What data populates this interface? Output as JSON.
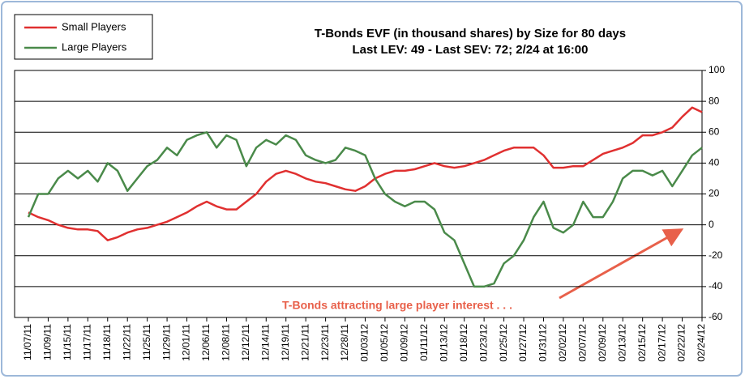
{
  "chart_data": {
    "type": "line",
    "title": "T-Bonds EVF (in thousand shares) by Size for 80 days",
    "subtitle": "Last LEV: 49 - Last SEV: 72; 2/24 at 16:00",
    "annotation": "T-Bonds attracting large player interest . . .",
    "categories": [
      "11/07/11",
      null,
      "11/09/11",
      null,
      "11/15/11",
      null,
      "11/17/11",
      null,
      "11/18/11",
      null,
      "11/22/11",
      null,
      "11/25/11",
      null,
      "11/29/11",
      null,
      "12/01/11",
      null,
      "12/06/11",
      null,
      "12/08/11",
      null,
      "12/12/11",
      null,
      "12/14/11",
      null,
      "12/19/11",
      null,
      "12/21/11",
      null,
      "12/23/11",
      null,
      "12/28/11",
      null,
      "01/03/12",
      null,
      "01/05/12",
      null,
      "01/09/12",
      null,
      "01/11/12",
      null,
      "01/13/12",
      null,
      "01/18/12",
      null,
      "01/23/12",
      null,
      "01/25/12",
      null,
      "01/27/12",
      null,
      "01/31/12",
      null,
      "02/02/12",
      null,
      "02/07/12",
      null,
      "02/09/12",
      null,
      "02/13/12",
      null,
      "02/15/12",
      null,
      "02/17/12",
      null,
      "02/22/12",
      null,
      "02/24/12"
    ],
    "series": [
      {
        "name": "Small Players",
        "color": "#e03030",
        "values": [
          8,
          5,
          3,
          0,
          -2,
          -3,
          -3,
          -4,
          -10,
          -8,
          -5,
          -3,
          -2,
          0,
          2,
          5,
          8,
          12,
          15,
          12,
          10,
          10,
          15,
          20,
          28,
          33,
          35,
          33,
          30,
          28,
          27,
          25,
          23,
          22,
          25,
          30,
          33,
          35,
          35,
          36,
          38,
          40,
          38,
          37,
          38,
          40,
          42,
          45,
          48,
          50,
          50,
          50,
          45,
          37,
          37,
          38,
          38,
          42,
          46,
          48,
          50,
          53,
          58,
          58,
          60,
          63,
          70,
          76,
          73
        ]
      },
      {
        "name": "Large Players",
        "color": "#4a8a4a",
        "values": [
          5,
          20,
          20,
          30,
          35,
          30,
          35,
          28,
          40,
          35,
          22,
          30,
          38,
          42,
          50,
          45,
          55,
          58,
          60,
          50,
          58,
          55,
          38,
          50,
          55,
          52,
          58,
          55,
          45,
          42,
          40,
          42,
          50,
          48,
          45,
          30,
          20,
          15,
          12,
          15,
          15,
          10,
          -5,
          -10,
          -25,
          -40,
          -40,
          -38,
          -25,
          -20,
          -10,
          5,
          15,
          -2,
          -5,
          0,
          15,
          5,
          5,
          15,
          30,
          35,
          35,
          32,
          35,
          25,
          35,
          45,
          50
        ]
      }
    ],
    "ylim": [
      -60,
      100
    ],
    "yticks": [
      -60,
      -40,
      -20,
      0,
      20,
      40,
      60,
      80,
      100
    ],
    "grid": true
  }
}
